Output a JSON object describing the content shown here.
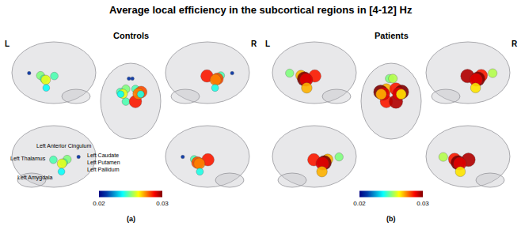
{
  "title": "Average local efficiency in the subcortical regions in [4-12] Hz",
  "chart_data": [
    {
      "type": "brain_nodes",
      "title": "Controls",
      "label": "(a)",
      "side_labels": [
        "L",
        "R"
      ],
      "categories": [
        "Left Anterior Cingulum",
        "Left Thalamus",
        "Left Caudate",
        "Left Putamen",
        "Left Pallidum",
        "Left Amygdala",
        null,
        null,
        null,
        null,
        null,
        null
      ],
      "values": [
        0.021,
        0.0245,
        0.025,
        0.0245,
        0.026,
        0.0238,
        0.021,
        0.0285,
        0.0245,
        0.028,
        0.0275,
        0.024
      ],
      "colorbar_range": [
        0.02,
        0.03
      ],
      "colorbar_ticks": [
        0.02,
        0.03
      ]
    },
    {
      "type": "brain_nodes",
      "title": "Patients",
      "label": "(b)",
      "side_labels": [
        "L",
        "R"
      ],
      "categories": [
        null,
        null,
        null,
        null,
        null,
        null,
        null,
        null,
        null,
        null,
        null,
        null
      ],
      "values": [
        0.025,
        0.0285,
        0.027,
        0.03,
        0.029,
        0.027,
        0.0255,
        0.0295,
        0.0285,
        0.03,
        0.029,
        0.0265
      ],
      "colorbar_range": [
        0.02,
        0.03
      ],
      "colorbar_ticks": [
        0.02,
        0.03
      ]
    }
  ]
}
